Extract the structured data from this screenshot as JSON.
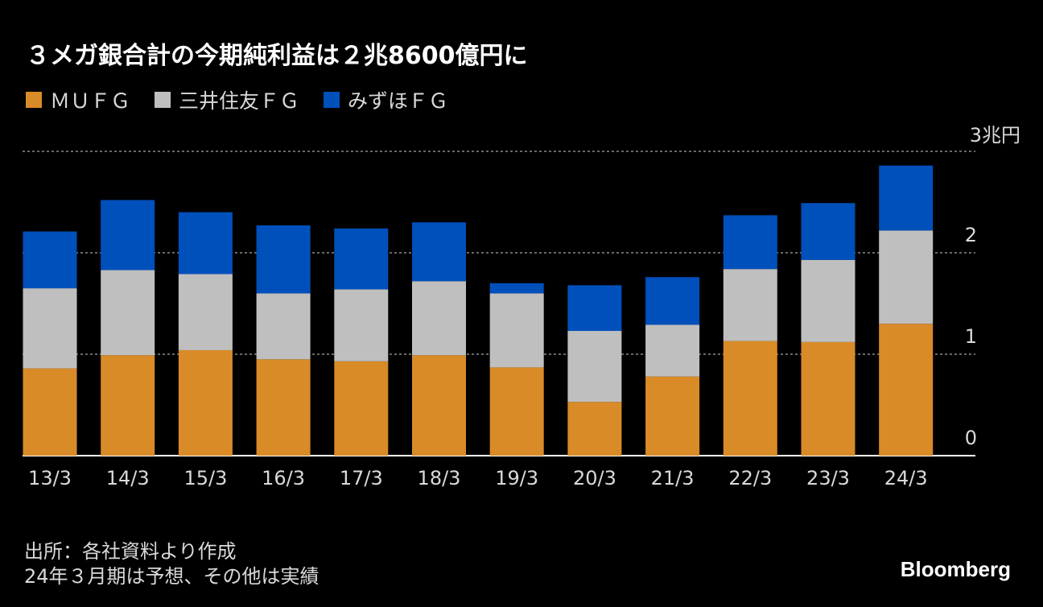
{
  "title": "３メガ銀合計の今期純利益は２兆8600億円に",
  "legend": [
    {
      "label": "ＭＵＦＧ",
      "color": "#d98b28"
    },
    {
      "label": "三井住友ＦＧ",
      "color": "#bfbfbf"
    },
    {
      "label": "みずほＦＧ",
      "color": "#0050bc"
    }
  ],
  "unit_label": "3兆円",
  "source": {
    "line1": "出所：各社資料より作成",
    "line2": "24年３月期は予想、その他は実績"
  },
  "brand": "Bloomberg",
  "chart_data": {
    "type": "bar",
    "stacked": true,
    "title": "３メガ銀合計の今期純利益は２兆8600億円に",
    "ylabel": "兆円",
    "ylim": [
      0,
      3
    ],
    "yticks": [
      {
        "value": 0,
        "label": "0"
      },
      {
        "value": 1,
        "label": "1"
      },
      {
        "value": 2,
        "label": "2"
      },
      {
        "value": 3,
        "label": "3兆円"
      }
    ],
    "grid": true,
    "categories": [
      "13/3",
      "14/3",
      "15/3",
      "16/3",
      "17/3",
      "18/3",
      "19/3",
      "20/3",
      "21/3",
      "22/3",
      "23/3",
      "24/3"
    ],
    "series": [
      {
        "name": "ＭＵＦＧ",
        "color": "#d98b28",
        "values": [
          0.86,
          0.99,
          1.04,
          0.95,
          0.93,
          0.99,
          0.87,
          0.53,
          0.78,
          1.13,
          1.12,
          1.3
        ]
      },
      {
        "name": "三井住友ＦＧ",
        "color": "#bfbfbf",
        "values": [
          0.79,
          0.84,
          0.75,
          0.65,
          0.71,
          0.73,
          0.73,
          0.7,
          0.51,
          0.71,
          0.81,
          0.92
        ]
      },
      {
        "name": "みずほＦＧ",
        "color": "#0050bc",
        "values": [
          0.56,
          0.69,
          0.61,
          0.67,
          0.6,
          0.58,
          0.1,
          0.45,
          0.47,
          0.53,
          0.56,
          0.64
        ]
      }
    ]
  }
}
